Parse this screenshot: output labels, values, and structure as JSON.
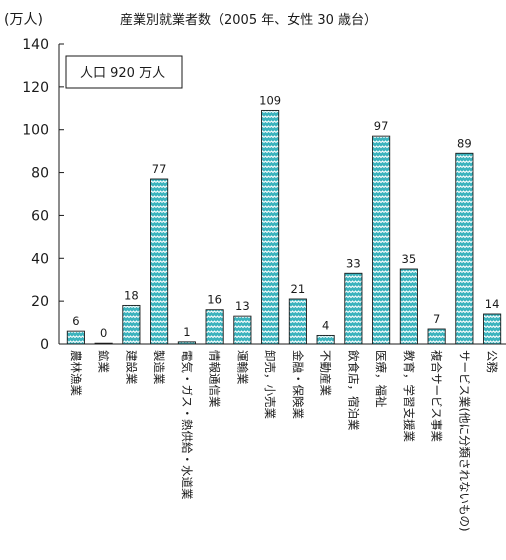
{
  "chart_data": {
    "type": "bar",
    "title": "産業別就業者数（2005 年、女性 30 歳台）",
    "ylabel": "(万人)",
    "annotation": "人口 920 万人",
    "ylim": [
      0,
      140
    ],
    "yticks": [
      "0",
      "20",
      "40",
      "60",
      "80",
      "100",
      "120",
      "140"
    ],
    "categories": [
      "農林漁業",
      "鉱業",
      "建設業",
      "製造業",
      "電気・ガス・熱供給・水道業",
      "情報通信業",
      "運輸業",
      "卸売，小売業",
      "金融・保険業",
      "不動産業",
      "飲食店，宿泊業",
      "医療，福祉",
      "教育，学習支援業",
      "複合サービス事業",
      "サービス業(他に分類されないもの)",
      "公務"
    ],
    "values": [
      6,
      0,
      18,
      77,
      1,
      16,
      13,
      109,
      21,
      4,
      33,
      97,
      35,
      7,
      89,
      14
    ],
    "grid": false,
    "colors": {
      "bar_fill": "#3bb3bd",
      "bar_pattern": "#ffffff",
      "bar_stroke": "#1a1a1a",
      "axis": "#1a1a1a"
    }
  }
}
